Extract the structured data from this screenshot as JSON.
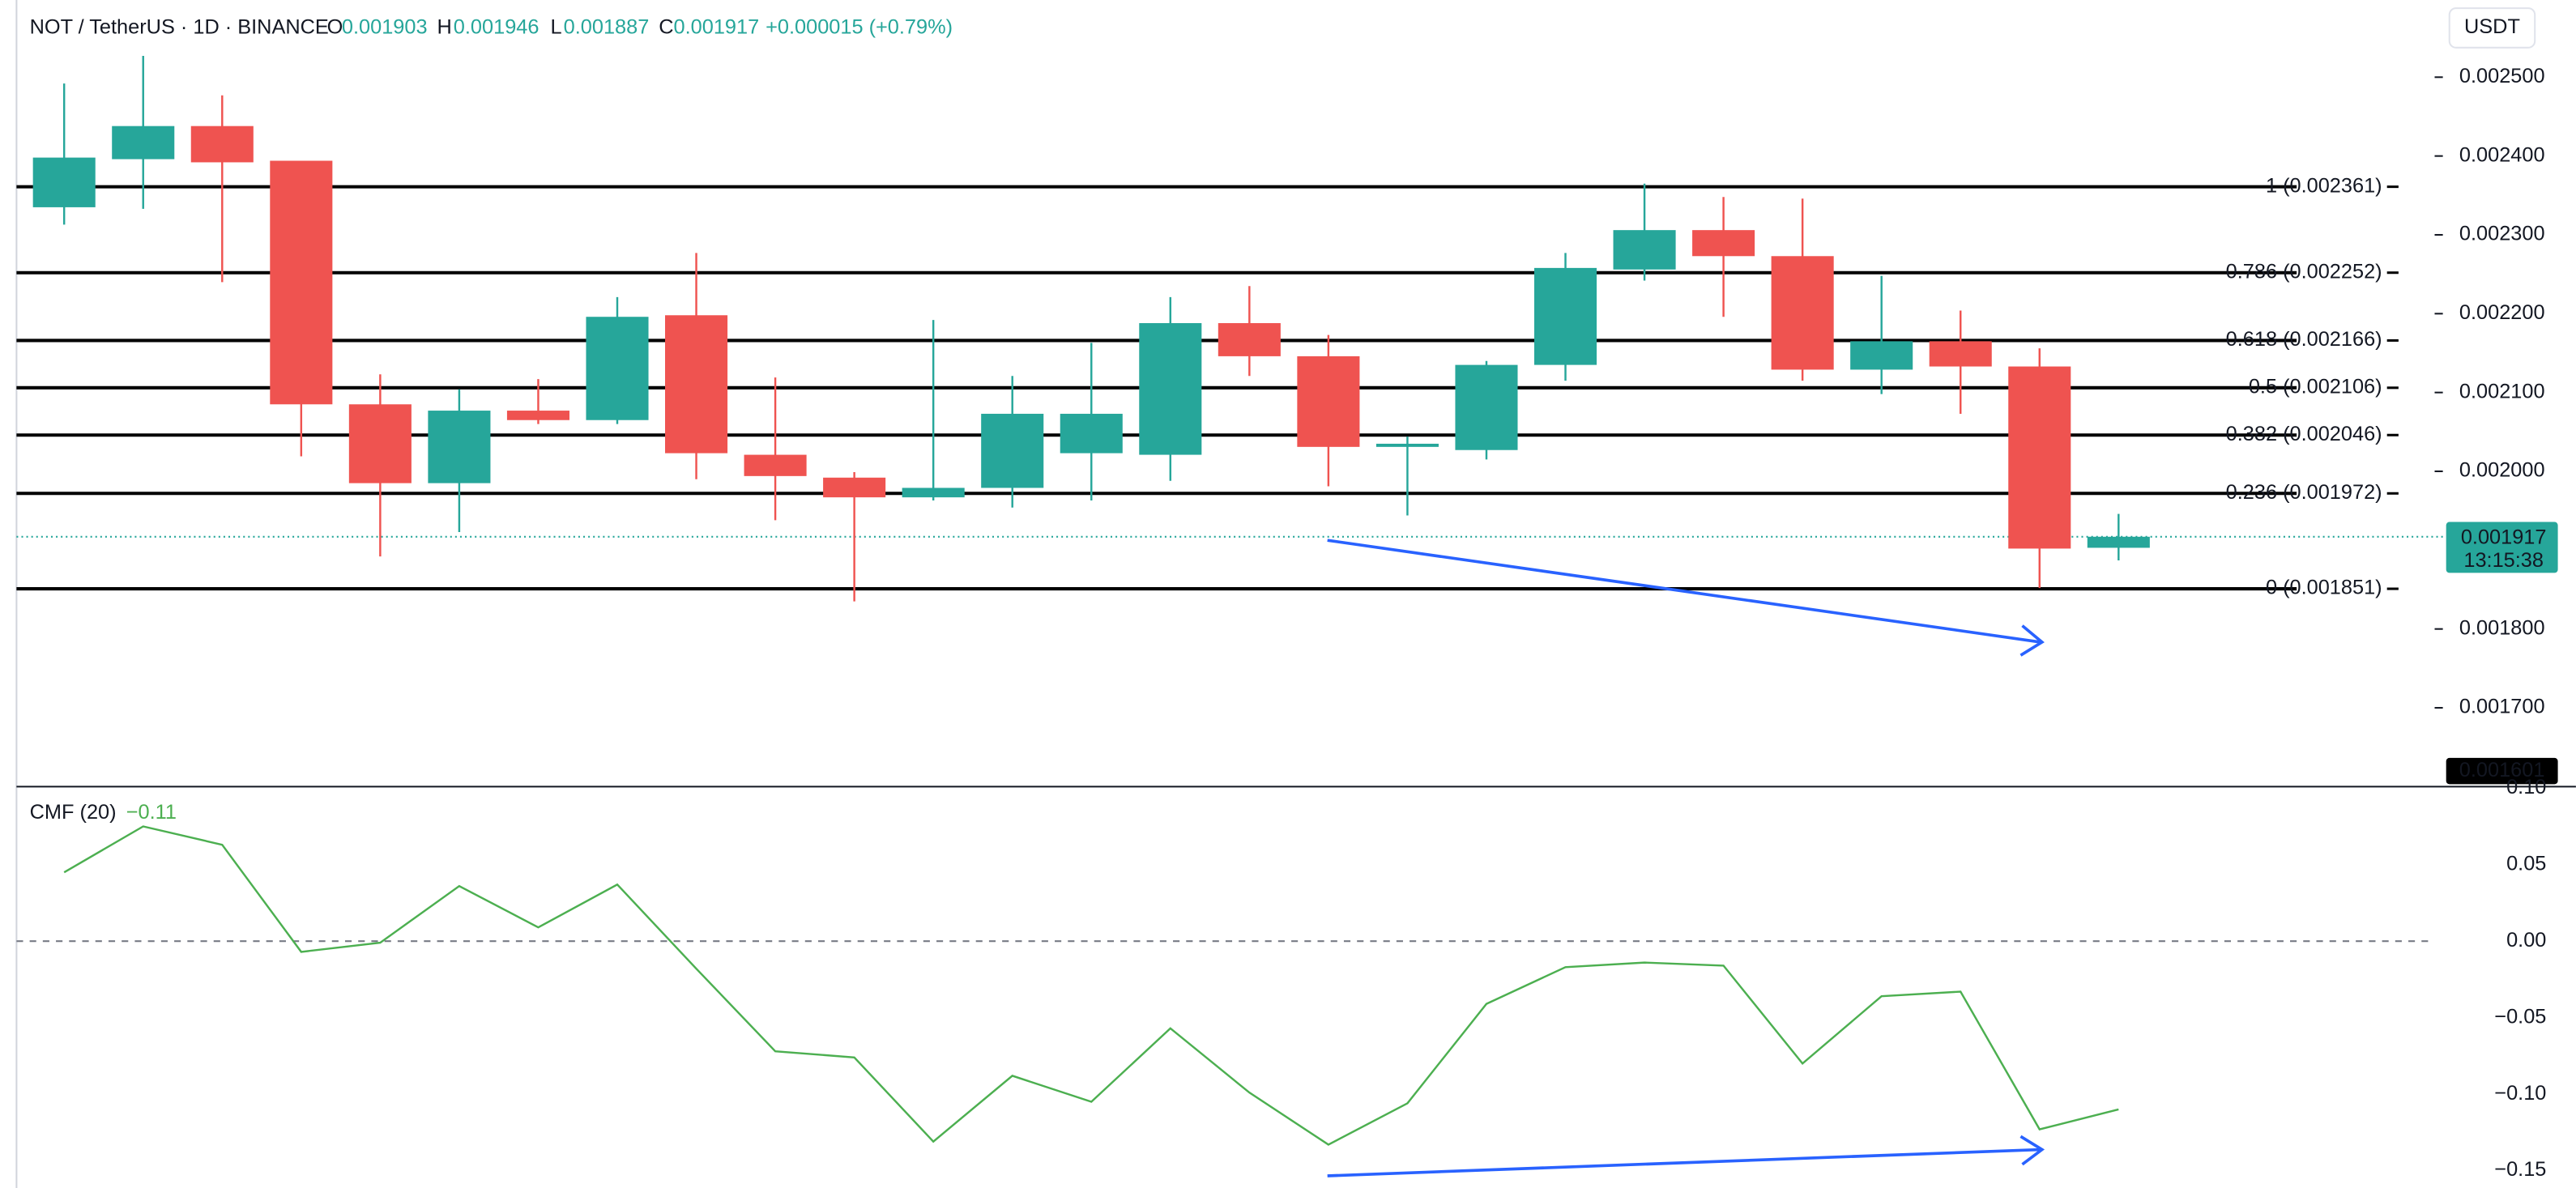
{
  "legend": {
    "symbol": "NOT / TetherUS · 1D · BINANCE",
    "o_label": "O",
    "o": "0.001903",
    "h_label": "H",
    "h": "0.001946",
    "l_label": "L",
    "l": "0.001887",
    "c_label": "C",
    "c": "0.001917",
    "change": "+0.000015 (+0.79%)"
  },
  "currency": "USDT",
  "chart_data": [
    {
      "type": "candlestick",
      "up_color": "#26a69a",
      "down_color": "#ef5350",
      "open": [
        0.002335,
        0.002396,
        0.002438,
        0.002394,
        0.002085,
        0.001985,
        0.002077,
        0.002065,
        0.002198,
        0.002021,
        0.001992,
        0.001967,
        0.001979,
        0.002023,
        0.002021,
        0.002188,
        0.002146,
        0.002031,
        0.002027,
        0.002135,
        0.002256,
        0.002306,
        0.002273,
        0.002129,
        0.002165,
        0.002133,
        0.001903
      ],
      "high": [
        0.002492,
        0.002527,
        0.002477,
        0.002394,
        0.002123,
        0.002104,
        0.002117,
        0.002221,
        0.002277,
        0.002119,
        0.001999,
        0.002192,
        0.002121,
        0.002163,
        0.002221,
        0.002235,
        0.002173,
        0.002044,
        0.00214,
        0.002277,
        0.002365,
        0.002348,
        0.002346,
        0.002248,
        0.002204,
        0.002156,
        0.001946
      ],
      "low": [
        0.002313,
        0.002333,
        0.00224,
        0.002019,
        0.001892,
        0.001923,
        0.00206,
        0.00206,
        0.00199,
        0.001938,
        0.001835,
        0.001963,
        0.001954,
        0.001963,
        0.001988,
        0.002121,
        0.001981,
        0.001944,
        0.002015,
        0.002115,
        0.002242,
        0.002196,
        0.002115,
        0.002098,
        0.002073,
        0.001852,
        0.001887
      ],
      "close": [
        0.002398,
        0.002438,
        0.002392,
        0.002085,
        0.001985,
        0.002077,
        0.002065,
        0.002196,
        0.002023,
        0.001994,
        0.001967,
        0.001979,
        0.002073,
        0.002073,
        0.002188,
        0.002146,
        0.002031,
        0.002035,
        0.002135,
        0.002258,
        0.002306,
        0.002273,
        0.002129,
        0.002165,
        0.002133,
        0.001902,
        0.001917
      ],
      "ylim": [
        0.0016,
        0.0026
      ],
      "yticks": [
        {
          "value": 0.0025,
          "label": "0.002500"
        },
        {
          "value": 0.0024,
          "label": "0.002400"
        },
        {
          "value": 0.0023,
          "label": "0.002300"
        },
        {
          "value": 0.0022,
          "label": "0.002200"
        },
        {
          "value": 0.0021,
          "label": "0.002100"
        },
        {
          "value": 0.002,
          "label": "0.002000"
        },
        {
          "value": 0.0018,
          "label": "0.001800"
        },
        {
          "value": 0.0017,
          "label": "0.001700"
        }
      ],
      "fib_levels": [
        {
          "value": 0.002361,
          "label": "1 (0.002361)"
        },
        {
          "value": 0.002252,
          "label": "0.786 (0.002252)"
        },
        {
          "value": 0.002166,
          "label": "0.618 (0.002166)"
        },
        {
          "value": 0.002106,
          "label": "0.5 (0.002106)"
        },
        {
          "value": 0.002046,
          "label": "0.382 (0.002046)"
        },
        {
          "value": 0.001972,
          "label": "0.236 (0.001972)"
        },
        {
          "value": 0.001851,
          "label": "0 (0.001851)"
        }
      ],
      "last_price": {
        "value": 0.001917,
        "label": "0.001917"
      },
      "countdown": "13:15:38",
      "bottom_price": {
        "value": 0.001601,
        "label": "0.001601"
      }
    },
    {
      "type": "line",
      "title": "CMF (20)",
      "value_label": "−0.11",
      "color": "#4caf50",
      "values": [
        0.045,
        0.075,
        0.063,
        -0.007,
        -0.001,
        0.036,
        0.009,
        0.037,
        -0.018,
        -0.072,
        -0.076,
        -0.131,
        -0.088,
        -0.105,
        -0.057,
        -0.099,
        -0.133,
        -0.106,
        -0.041,
        -0.017,
        -0.014,
        -0.016,
        -0.08,
        -0.036,
        -0.033,
        -0.123,
        -0.11
      ],
      "ylim": [
        -0.162,
        0.101
      ],
      "yticks": [
        {
          "value": 0.1,
          "label": "0.10"
        },
        {
          "value": 0.05,
          "label": "0.05"
        },
        {
          "value": 0,
          "label": "0.00"
        },
        {
          "value": -0.05,
          "label": "−0.05"
        },
        {
          "value": -0.1,
          "label": "−0.10"
        },
        {
          "value": -0.15,
          "label": "−0.15"
        }
      ],
      "zero_line": 0
    }
  ]
}
